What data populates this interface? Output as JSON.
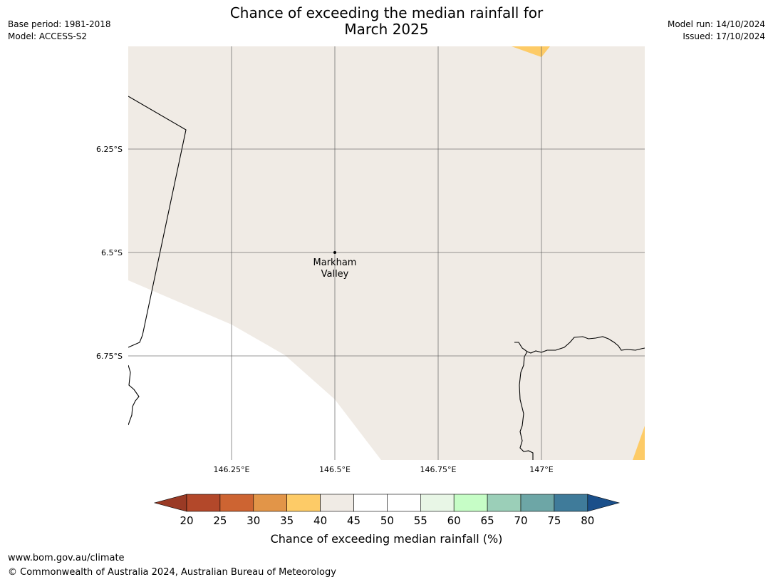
{
  "title_line1": "Chance of exceeding the median rainfall for",
  "title_line2": "March 2025",
  "meta_left": [
    "Base period: 1981-2018",
    "Model: ACCESS-S2"
  ],
  "meta_right": [
    "Model run: 14/10/2024",
    "Issued: 17/10/2024"
  ],
  "map": {
    "lon_ticks": [
      "146.25°E",
      "146.5°E",
      "146.75°E",
      "147°E"
    ],
    "lat_ticks": [
      "6.25°S",
      "6.5°S",
      "6.75°S"
    ],
    "place": {
      "name_line1": "Markham",
      "name_line2": "Valley"
    },
    "colors": {
      "land_45": "#f0ebe5",
      "below_40": "#fdcb67",
      "grid": "#555555",
      "coast": "#000000"
    }
  },
  "colorbar": {
    "title": "Chance of exceeding median rainfall (%)",
    "ticks": [
      "20",
      "25",
      "30",
      "35",
      "40",
      "45",
      "50",
      "55",
      "60",
      "65",
      "70",
      "75",
      "80"
    ],
    "colors": [
      "#b3482a",
      "#cd6432",
      "#e29548",
      "#fdcb67",
      "#f0ebe5",
      "#ffffff",
      "#ffffff",
      "#e8f6e6",
      "#c6fdc6",
      "#9bcfb8",
      "#6da6a6",
      "#3f7b9a"
    ],
    "under_color": "#9a3a25",
    "over_color": "#1a4f8a"
  },
  "footer": {
    "url": "www.bom.gov.au/climate",
    "copyright": "© Commonwealth of Australia 2024, Australian Bureau of Meteorology"
  }
}
